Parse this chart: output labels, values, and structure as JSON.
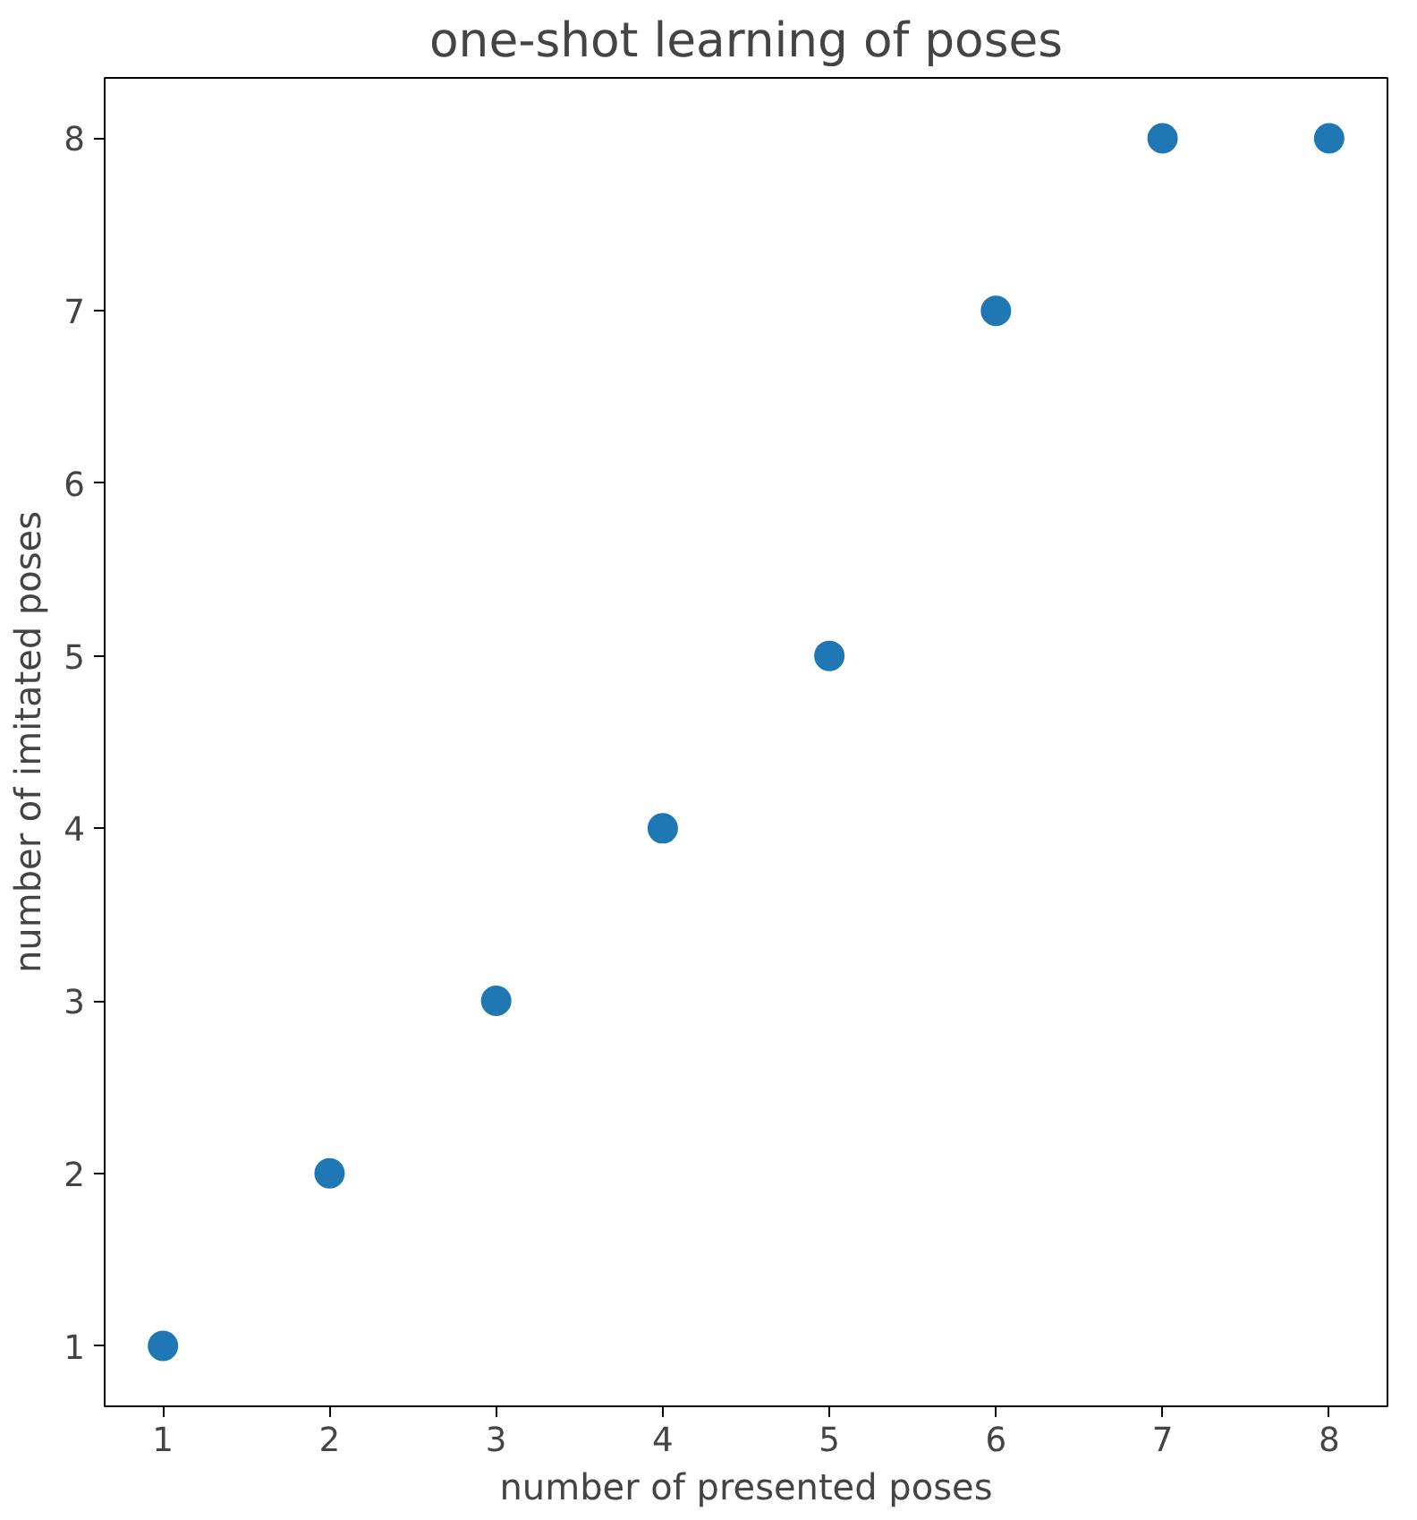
{
  "chart_data": {
    "type": "scatter",
    "title": "one-shot learning of poses",
    "xlabel": "number of presented poses",
    "ylabel": "number of imitated poses",
    "x": [
      1,
      2,
      3,
      4,
      5,
      6,
      7,
      8
    ],
    "series": [
      {
        "color": "#1f77b4",
        "values": [
          1,
          2,
          3,
          4,
          5,
          7,
          8,
          8
        ]
      }
    ],
    "xlim": [
      0.65,
      8.35
    ],
    "ylim": [
      0.65,
      8.35
    ],
    "xticks": [
      1,
      2,
      3,
      4,
      5,
      6,
      7,
      8
    ],
    "yticks": [
      1,
      2,
      3,
      4,
      5,
      6,
      7,
      8
    ],
    "marker": "circle",
    "grid": false
  }
}
